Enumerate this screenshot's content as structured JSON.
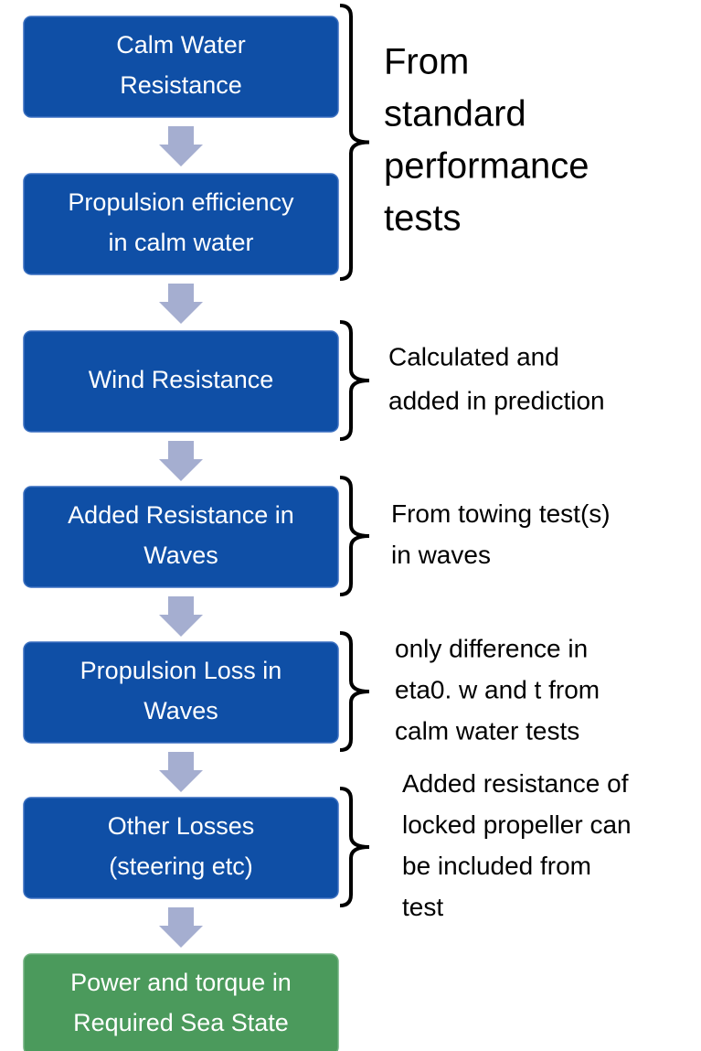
{
  "nodes": [
    {
      "lines": [
        "Calm Water",
        "Resistance"
      ]
    },
    {
      "lines": [
        "Propulsion efficiency",
        "in calm water"
      ]
    },
    {
      "lines": [
        "Wind Resistance"
      ]
    },
    {
      "lines": [
        "Added Resistance in",
        "Waves"
      ]
    },
    {
      "lines": [
        "Propulsion Loss in",
        "Waves"
      ]
    },
    {
      "lines": [
        "Other Losses",
        "(steering etc)"
      ]
    },
    {
      "lines": [
        "Power and torque in",
        "Required Sea State"
      ]
    }
  ],
  "annotations": [
    {
      "lines": [
        "From",
        "standard",
        "performance",
        "tests"
      ]
    },
    {
      "lines": [
        "Calculated and",
        "added in prediction"
      ]
    },
    {
      "lines": [
        "From towing test(s)",
        "in waves"
      ]
    },
    {
      "lines": [
        "only difference in",
        "eta0. w and t from",
        "calm water tests"
      ]
    },
    {
      "lines": [
        "Added resistance of",
        "locked propeller can",
        "be included from",
        "test"
      ]
    }
  ]
}
